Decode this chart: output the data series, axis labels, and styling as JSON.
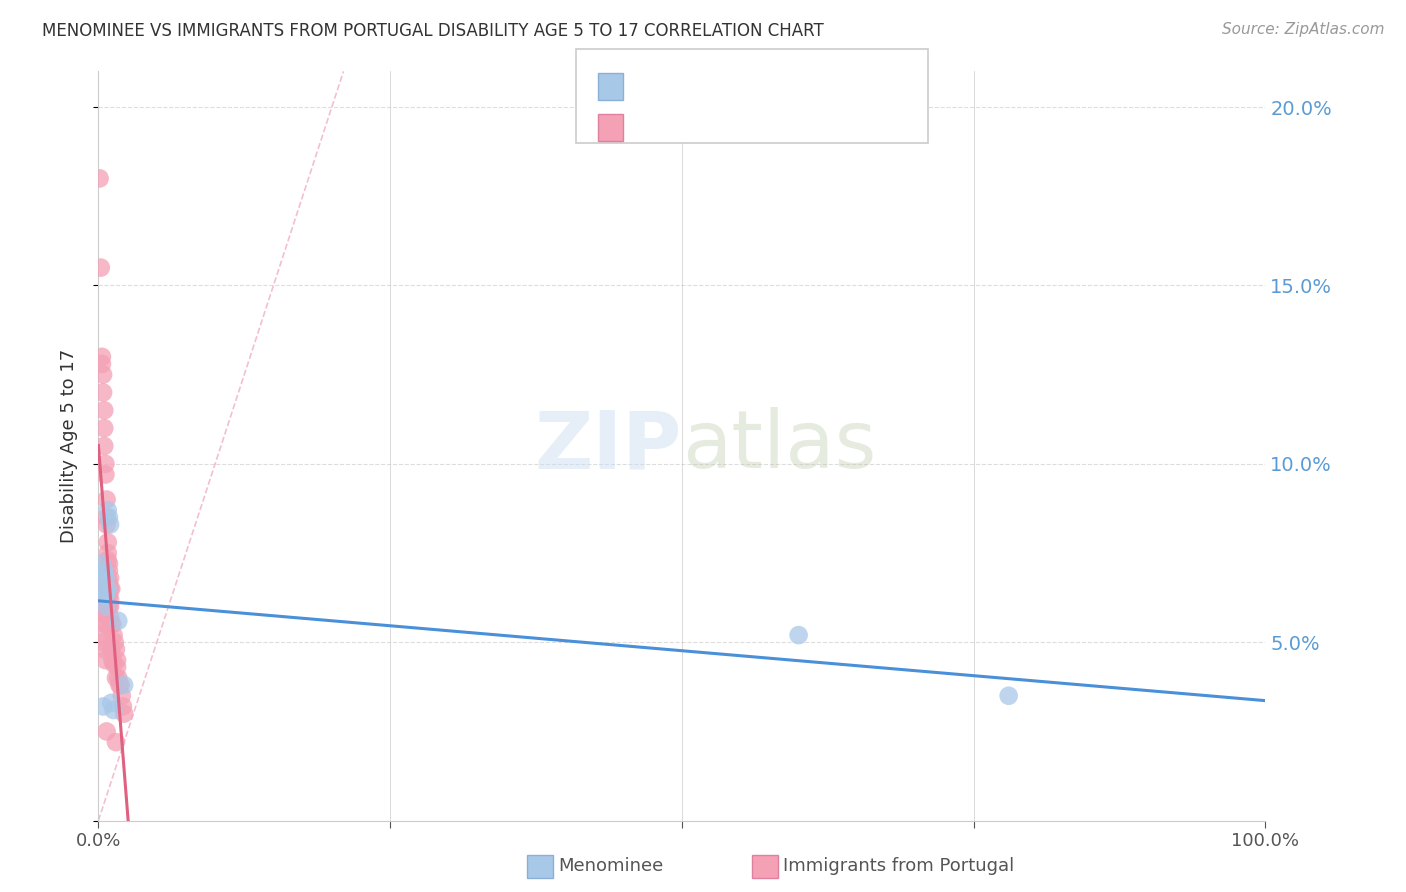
{
  "title": "MENOMINEE VS IMMIGRANTS FROM PORTUGAL DISABILITY AGE 5 TO 17 CORRELATION CHART",
  "source": "Source: ZipAtlas.com",
  "ylabel": "Disability Age 5 to 17",
  "xlim": [
    0,
    1.0
  ],
  "ylim": [
    0,
    0.21
  ],
  "menominee_color": "#a8c8e8",
  "portugal_color": "#f4a0b5",
  "trendline_blue": "#4a90d9",
  "trendline_pink": "#e06080",
  "axis_color": "#5b9bd5",
  "menominee_x": [
    0.003,
    0.004,
    0.004,
    0.005,
    0.005,
    0.006,
    0.006,
    0.007,
    0.007,
    0.008,
    0.008,
    0.009,
    0.01,
    0.011,
    0.013,
    0.017,
    0.022,
    0.6,
    0.78
  ],
  "menominee_y": [
    0.072,
    0.065,
    0.032,
    0.07,
    0.069,
    0.068,
    0.063,
    0.06,
    0.064,
    0.065,
    0.087,
    0.085,
    0.083,
    0.033,
    0.031,
    0.056,
    0.038,
    0.052,
    0.035
  ],
  "portugal_x": [
    0.001,
    0.002,
    0.003,
    0.003,
    0.004,
    0.004,
    0.004,
    0.005,
    0.005,
    0.005,
    0.005,
    0.005,
    0.006,
    0.006,
    0.006,
    0.007,
    0.007,
    0.007,
    0.007,
    0.007,
    0.008,
    0.008,
    0.008,
    0.008,
    0.009,
    0.009,
    0.009,
    0.009,
    0.009,
    0.01,
    0.01,
    0.01,
    0.01,
    0.01,
    0.011,
    0.011,
    0.011,
    0.012,
    0.012,
    0.013,
    0.013,
    0.014,
    0.015,
    0.015,
    0.016,
    0.016,
    0.017,
    0.018,
    0.019,
    0.02,
    0.021,
    0.022,
    0.003,
    0.004,
    0.005,
    0.006,
    0.003,
    0.004,
    0.005,
    0.006,
    0.007,
    0.015
  ],
  "portugal_y": [
    0.18,
    0.155,
    0.13,
    0.128,
    0.125,
    0.12,
    0.068,
    0.115,
    0.11,
    0.105,
    0.068,
    0.06,
    0.1,
    0.097,
    0.058,
    0.09,
    0.085,
    0.083,
    0.065,
    0.06,
    0.078,
    0.075,
    0.073,
    0.055,
    0.072,
    0.07,
    0.067,
    0.063,
    0.06,
    0.068,
    0.065,
    0.062,
    0.06,
    0.057,
    0.065,
    0.055,
    0.048,
    0.055,
    0.045,
    0.052,
    0.044,
    0.05,
    0.048,
    0.04,
    0.045,
    0.043,
    0.04,
    0.038,
    0.038,
    0.035,
    0.032,
    0.03,
    0.063,
    0.06,
    0.058,
    0.055,
    0.052,
    0.05,
    0.048,
    0.045,
    0.025,
    0.022
  ]
}
